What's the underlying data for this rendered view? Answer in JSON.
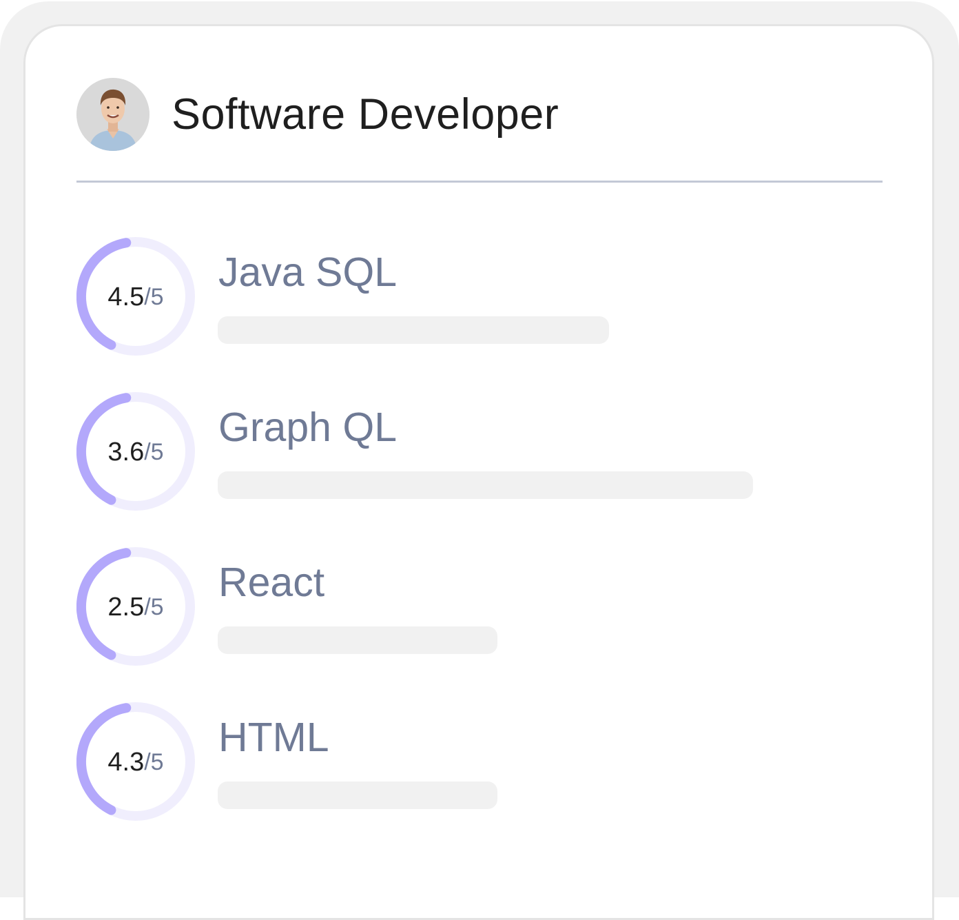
{
  "profile": {
    "title": "Software Developer",
    "avatar_icon": "person-avatar-icon"
  },
  "colors": {
    "ring_progress": "#b3a8fb",
    "ring_track": "#f0eefd",
    "bar": "#f1f1f1",
    "skill_text": "#6f7a95",
    "divider": "#c3c8d6"
  },
  "skills": [
    {
      "name": "Java SQL",
      "score": "4.5",
      "max": "/5",
      "bar_fraction": 0.49
    },
    {
      "name": "Graph QL",
      "score": "3.6",
      "max": "/5",
      "bar_fraction": 0.67
    },
    {
      "name": "React",
      "score": "2.5",
      "max": "/5",
      "bar_fraction": 0.35
    },
    {
      "name": "HTML",
      "score": "4.3",
      "max": "/5",
      "bar_fraction": 0.35
    }
  ]
}
